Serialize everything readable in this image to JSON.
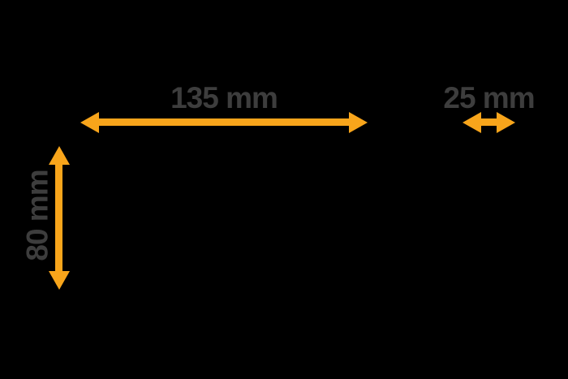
{
  "diagram": {
    "title": "product-dimensions-diagram",
    "colors": {
      "background": "#000000",
      "arrow_accent": "#F8A51B",
      "label_text": "#3D3D3D"
    },
    "icons": {
      "arrowhead": "css-triangle"
    },
    "dimensions": {
      "width": {
        "label": "135 mm",
        "value": 135,
        "unit": "mm",
        "orientation": "horizontal"
      },
      "depth": {
        "label": "25 mm",
        "value": 25,
        "unit": "mm",
        "orientation": "horizontal"
      },
      "height": {
        "label": "80 mm",
        "value": 80,
        "unit": "mm",
        "orientation": "vertical"
      }
    }
  }
}
